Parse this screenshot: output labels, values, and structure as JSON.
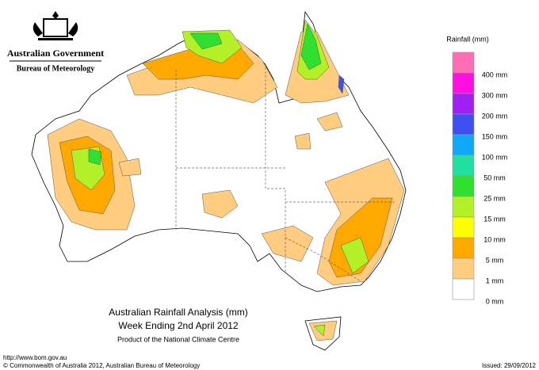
{
  "header": {
    "organisation": "Australian Government",
    "agency": "Bureau of Meteorology"
  },
  "legend": {
    "title": "Rainfall (mm)",
    "colors": [
      "#ff6eb4",
      "#ff10e0",
      "#a020f0",
      "#4050f0",
      "#10a8f8",
      "#20e0a0",
      "#30e030",
      "#b4f028",
      "#ffff00",
      "#ffa800",
      "#ffcc80",
      "#ffffff"
    ],
    "labels": [
      "400 mm",
      "300 mm",
      "200 mm",
      "150 mm",
      "100 mm",
      "50 mm",
      "25 mm",
      "15 mm",
      "10 mm",
      "5 mm",
      "1 mm",
      "0 mm"
    ]
  },
  "title": "Australian Rainfall Analysis (mm)",
  "subtitle": "Week Ending 2nd April 2012",
  "credit": "Product of the National Climate Centre",
  "footer": {
    "url": "http://www.bom.gov.au",
    "copyright": "© Commonwealth of Australia 2012, Australian Bureau of Meteorology",
    "issued": "Issued: 29/09/2012"
  }
}
